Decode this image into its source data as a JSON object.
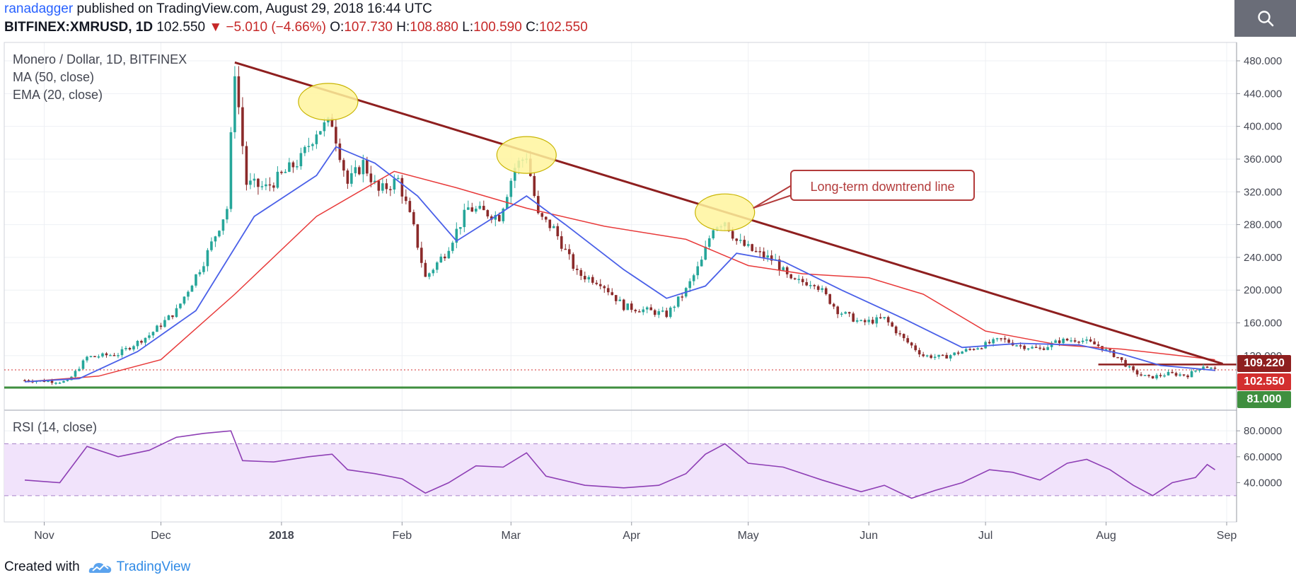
{
  "header": {
    "author": "ranadagger",
    "published_text": " published on TradingView.com, August 29, 2018 16:44 UTC",
    "symbol": "BITFINEX:XMRUSD, 1D",
    "last": "102.550",
    "change": "−5.010 (−4.66%)",
    "o_label": "O:",
    "o_value": "107.730",
    "h_label": "H:",
    "h_value": "108.880",
    "l_label": "L:",
    "l_value": "100.590",
    "c_label": "C:",
    "c_value": "102.550"
  },
  "toolbar": {
    "search_icon": "search-icon"
  },
  "footer": {
    "created_with": "Created with",
    "brand": "TradingView"
  },
  "colors": {
    "up": "#26a69a",
    "down": "#8b2a2a",
    "ema": "#4a60e8",
    "ma": "#e83a3a",
    "trendline": "#8e1f1f",
    "support": "#3f8f3f",
    "rsi": "#8e3fb5",
    "rsi_band": "#f1e3fb"
  },
  "chart_data": [
    {
      "type": "candlestick",
      "title": "Monero / Dollar, 1D, BITFINEX",
      "indicators": [
        "MA (50, close)",
        "EMA (20, close)"
      ],
      "ylim": [
        81,
        480
      ],
      "yticks": [
        "480.000",
        "440.000",
        "400.000",
        "360.000",
        "320.000",
        "280.000",
        "240.000",
        "200.000",
        "160.000",
        "120.000"
      ],
      "xticks": [
        "Nov",
        "Dec",
        "2018",
        "Feb",
        "Mar",
        "Apr",
        "May",
        "Jun",
        "Jul",
        "Aug",
        "Sep"
      ],
      "price_labels": {
        "resistance": "109.220",
        "last": "102.550",
        "support": "81.000"
      },
      "annotations": {
        "callout": "Long-term downtrend line"
      },
      "key_levels": {
        "support": 81,
        "resistance": 109.22,
        "last": 102.55
      },
      "trendline": [
        [
          "2017-12-20",
          478
        ],
        [
          "2018-08-31",
          110
        ]
      ],
      "highlighted_peaks": [
        [
          "2018-01-13",
          430
        ],
        [
          "2018-03-05",
          365
        ],
        [
          "2018-04-25",
          295
        ]
      ],
      "close_path": [
        [
          "2017-10-27",
          90
        ],
        [
          "2017-11-07",
          88
        ],
        [
          "2017-11-12",
          118
        ],
        [
          "2017-11-20",
          122
        ],
        [
          "2017-11-28",
          145
        ],
        [
          "2017-12-05",
          175
        ],
        [
          "2017-12-12",
          235
        ],
        [
          "2017-12-18",
          300
        ],
        [
          "2017-12-20",
          470
        ],
        [
          "2017-12-23",
          330
        ],
        [
          "2017-12-28",
          325
        ],
        [
          "2018-01-01",
          340
        ],
        [
          "2018-01-06",
          360
        ],
        [
          "2018-01-10",
          395
        ],
        [
          "2018-01-14",
          405
        ],
        [
          "2018-01-18",
          330
        ],
        [
          "2018-01-22",
          355
        ],
        [
          "2018-01-26",
          320
        ],
        [
          "2018-01-31",
          335
        ],
        [
          "2018-02-04",
          275
        ],
        [
          "2018-02-07",
          215
        ],
        [
          "2018-02-12",
          245
        ],
        [
          "2018-02-18",
          300
        ],
        [
          "2018-02-22",
          295
        ],
        [
          "2018-02-26",
          290
        ],
        [
          "2018-03-02",
          350
        ],
        [
          "2018-03-05",
          365
        ],
        [
          "2018-03-08",
          290
        ],
        [
          "2018-03-12",
          275
        ],
        [
          "2018-03-18",
          220
        ],
        [
          "2018-03-24",
          210
        ],
        [
          "2018-03-30",
          180
        ],
        [
          "2018-04-05",
          175
        ],
        [
          "2018-04-10",
          170
        ],
        [
          "2018-04-15",
          200
        ],
        [
          "2018-04-19",
          235
        ],
        [
          "2018-04-22",
          278
        ],
        [
          "2018-04-25",
          285
        ],
        [
          "2018-04-28",
          260
        ],
        [
          "2018-05-02",
          248
        ],
        [
          "2018-05-08",
          235
        ],
        [
          "2018-05-12",
          210
        ],
        [
          "2018-05-18",
          210
        ],
        [
          "2018-05-24",
          175
        ],
        [
          "2018-05-30",
          160
        ],
        [
          "2018-06-05",
          165
        ],
        [
          "2018-06-10",
          140
        ],
        [
          "2018-06-15",
          120
        ],
        [
          "2018-06-20",
          118
        ],
        [
          "2018-06-25",
          125
        ],
        [
          "2018-06-30",
          132
        ],
        [
          "2018-07-05",
          140
        ],
        [
          "2018-07-10",
          132
        ],
        [
          "2018-07-15",
          128
        ],
        [
          "2018-07-20",
          138
        ],
        [
          "2018-07-25",
          140
        ],
        [
          "2018-07-30",
          132
        ],
        [
          "2018-08-04",
          118
        ],
        [
          "2018-08-08",
          100
        ],
        [
          "2018-08-12",
          93
        ],
        [
          "2018-08-17",
          98
        ],
        [
          "2018-08-22",
          96
        ],
        [
          "2018-08-26",
          108
        ],
        [
          "2018-08-29",
          102.55
        ]
      ],
      "ema20_path": [
        [
          "2017-10-27",
          88
        ],
        [
          "2017-11-10",
          92
        ],
        [
          "2017-11-25",
          125
        ],
        [
          "2017-12-10",
          175
        ],
        [
          "2017-12-25",
          290
        ],
        [
          "2018-01-10",
          340
        ],
        [
          "2018-01-15",
          375
        ],
        [
          "2018-01-25",
          355
        ],
        [
          "2018-02-05",
          315
        ],
        [
          "2018-02-15",
          260
        ],
        [
          "2018-02-25",
          290
        ],
        [
          "2018-03-05",
          315
        ],
        [
          "2018-03-15",
          280
        ],
        [
          "2018-03-30",
          225
        ],
        [
          "2018-04-10",
          190
        ],
        [
          "2018-04-20",
          205
        ],
        [
          "2018-04-28",
          245
        ],
        [
          "2018-05-10",
          235
        ],
        [
          "2018-05-25",
          200
        ],
        [
          "2018-06-10",
          165
        ],
        [
          "2018-06-25",
          130
        ],
        [
          "2018-07-10",
          135
        ],
        [
          "2018-07-25",
          133
        ],
        [
          "2018-08-05",
          122
        ],
        [
          "2018-08-15",
          108
        ],
        [
          "2018-08-29",
          102
        ]
      ],
      "ma50_path": [
        [
          "2017-10-27",
          88
        ],
        [
          "2017-11-15",
          95
        ],
        [
          "2017-12-01",
          115
        ],
        [
          "2017-12-20",
          195
        ],
        [
          "2018-01-10",
          290
        ],
        [
          "2018-01-30",
          345
        ],
        [
          "2018-02-15",
          325
        ],
        [
          "2018-03-05",
          300
        ],
        [
          "2018-03-25",
          278
        ],
        [
          "2018-04-15",
          262
        ],
        [
          "2018-05-01",
          230
        ],
        [
          "2018-05-15",
          220
        ],
        [
          "2018-06-01",
          215
        ],
        [
          "2018-06-15",
          195
        ],
        [
          "2018-07-01",
          150
        ],
        [
          "2018-07-20",
          133
        ],
        [
          "2018-08-05",
          128
        ],
        [
          "2018-08-29",
          115
        ]
      ]
    },
    {
      "type": "line",
      "title": "RSI (14, close)",
      "ylim": [
        25,
        85
      ],
      "yticks": [
        "80.0000",
        "60.0000",
        "40.0000"
      ],
      "band": [
        30,
        70
      ],
      "points": [
        [
          "2017-10-27",
          42
        ],
        [
          "2017-11-05",
          40
        ],
        [
          "2017-11-12",
          68
        ],
        [
          "2017-11-20",
          60
        ],
        [
          "2017-11-28",
          65
        ],
        [
          "2017-12-05",
          75
        ],
        [
          "2017-12-12",
          78
        ],
        [
          "2017-12-19",
          80
        ],
        [
          "2017-12-22",
          57
        ],
        [
          "2017-12-30",
          56
        ],
        [
          "2018-01-08",
          60
        ],
        [
          "2018-01-14",
          62
        ],
        [
          "2018-01-18",
          50
        ],
        [
          "2018-01-25",
          47
        ],
        [
          "2018-02-01",
          43
        ],
        [
          "2018-02-07",
          32
        ],
        [
          "2018-02-13",
          40
        ],
        [
          "2018-02-20",
          53
        ],
        [
          "2018-02-27",
          52
        ],
        [
          "2018-03-05",
          63
        ],
        [
          "2018-03-10",
          45
        ],
        [
          "2018-03-20",
          38
        ],
        [
          "2018-03-30",
          36
        ],
        [
          "2018-04-08",
          38
        ],
        [
          "2018-04-15",
          47
        ],
        [
          "2018-04-20",
          62
        ],
        [
          "2018-04-25",
          70
        ],
        [
          "2018-05-01",
          55
        ],
        [
          "2018-05-10",
          52
        ],
        [
          "2018-05-20",
          42
        ],
        [
          "2018-05-30",
          33
        ],
        [
          "2018-06-05",
          38
        ],
        [
          "2018-06-12",
          28
        ],
        [
          "2018-06-18",
          34
        ],
        [
          "2018-06-25",
          40
        ],
        [
          "2018-07-02",
          50
        ],
        [
          "2018-07-08",
          48
        ],
        [
          "2018-07-15",
          42
        ],
        [
          "2018-07-22",
          55
        ],
        [
          "2018-07-27",
          58
        ],
        [
          "2018-08-02",
          50
        ],
        [
          "2018-08-08",
          38
        ],
        [
          "2018-08-13",
          30
        ],
        [
          "2018-08-18",
          40
        ],
        [
          "2018-08-24",
          44
        ],
        [
          "2018-08-27",
          54
        ],
        [
          "2018-08-29",
          50
        ]
      ]
    }
  ]
}
